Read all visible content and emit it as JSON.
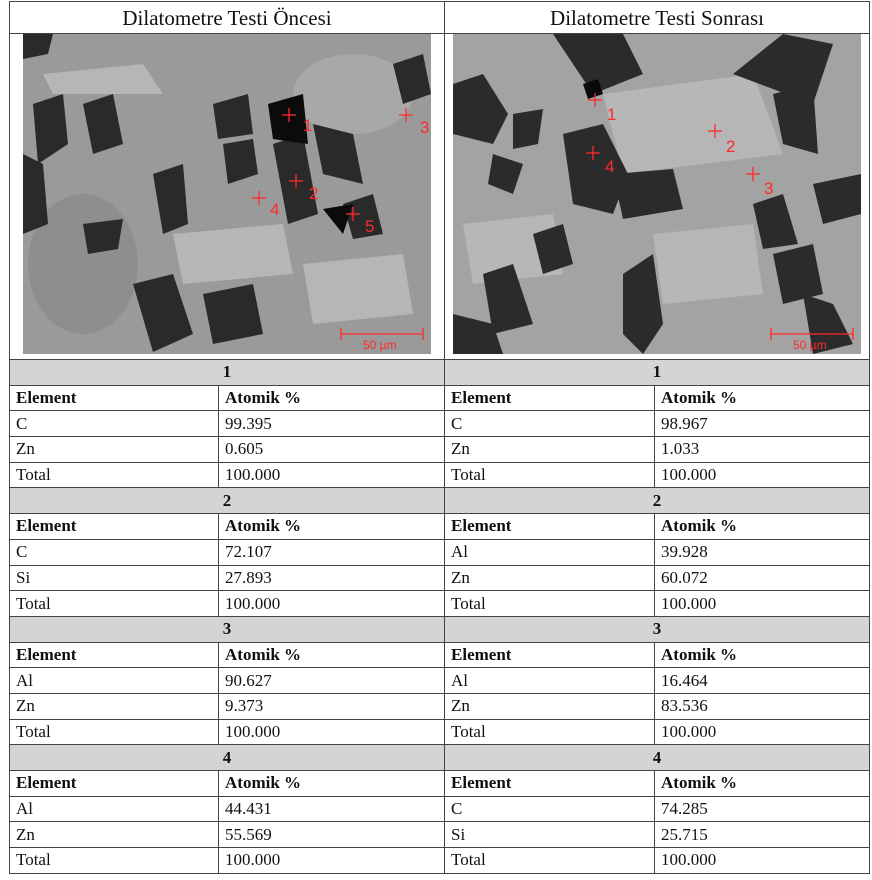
{
  "columns": [
    {
      "title": "Dilatometre Testi Öncesi",
      "markers": [
        "1",
        "2",
        "3",
        "4",
        "5"
      ],
      "scale": "50 µm",
      "sections": [
        {
          "label": "1",
          "header": [
            "Element",
            "Atomik %"
          ],
          "rows": [
            [
              "C",
              "99.395"
            ],
            [
              "Zn",
              "0.605"
            ],
            [
              "Total",
              "100.000"
            ]
          ]
        },
        {
          "label": "2",
          "header": [
            "Element",
            "Atomik %"
          ],
          "rows": [
            [
              "C",
              "72.107"
            ],
            [
              "Si",
              "27.893"
            ],
            [
              "Total",
              "100.000"
            ]
          ]
        },
        {
          "label": "3",
          "header": [
            "Element",
            "Atomik %"
          ],
          "rows": [
            [
              "Al",
              "90.627"
            ],
            [
              "Zn",
              "9.373"
            ],
            [
              "Total",
              "100.000"
            ]
          ]
        },
        {
          "label": "4",
          "header": [
            "Element",
            "Atomik %"
          ],
          "rows": [
            [
              "Al",
              "44.431"
            ],
            [
              "Zn",
              "55.569"
            ],
            [
              "Total",
              "100.000"
            ]
          ]
        }
      ]
    },
    {
      "title": "Dilatometre Testi Sonrası",
      "markers": [
        "1",
        "2",
        "3",
        "4"
      ],
      "scale": "50 µm",
      "sections": [
        {
          "label": "1",
          "header": [
            "Element",
            "Atomik %"
          ],
          "rows": [
            [
              "C",
              "98.967"
            ],
            [
              "Zn",
              "1.033"
            ],
            [
              "Total",
              "100.000"
            ]
          ]
        },
        {
          "label": "2",
          "header": [
            "Element",
            "Atomik %"
          ],
          "rows": [
            [
              "Al",
              "39.928"
            ],
            [
              "Zn",
              "60.072"
            ],
            [
              "Total",
              "100.000"
            ]
          ]
        },
        {
          "label": "3",
          "header": [
            "Element",
            "Atomik %"
          ],
          "rows": [
            [
              "Al",
              "16.464"
            ],
            [
              "Zn",
              "83.536"
            ],
            [
              "Total",
              "100.000"
            ]
          ]
        },
        {
          "label": "4",
          "header": [
            "Element",
            "Atomik %"
          ],
          "rows": [
            [
              "C",
              "74.285"
            ],
            [
              "Si",
              "25.715"
            ],
            [
              "Total",
              "100.000"
            ]
          ]
        }
      ]
    }
  ]
}
